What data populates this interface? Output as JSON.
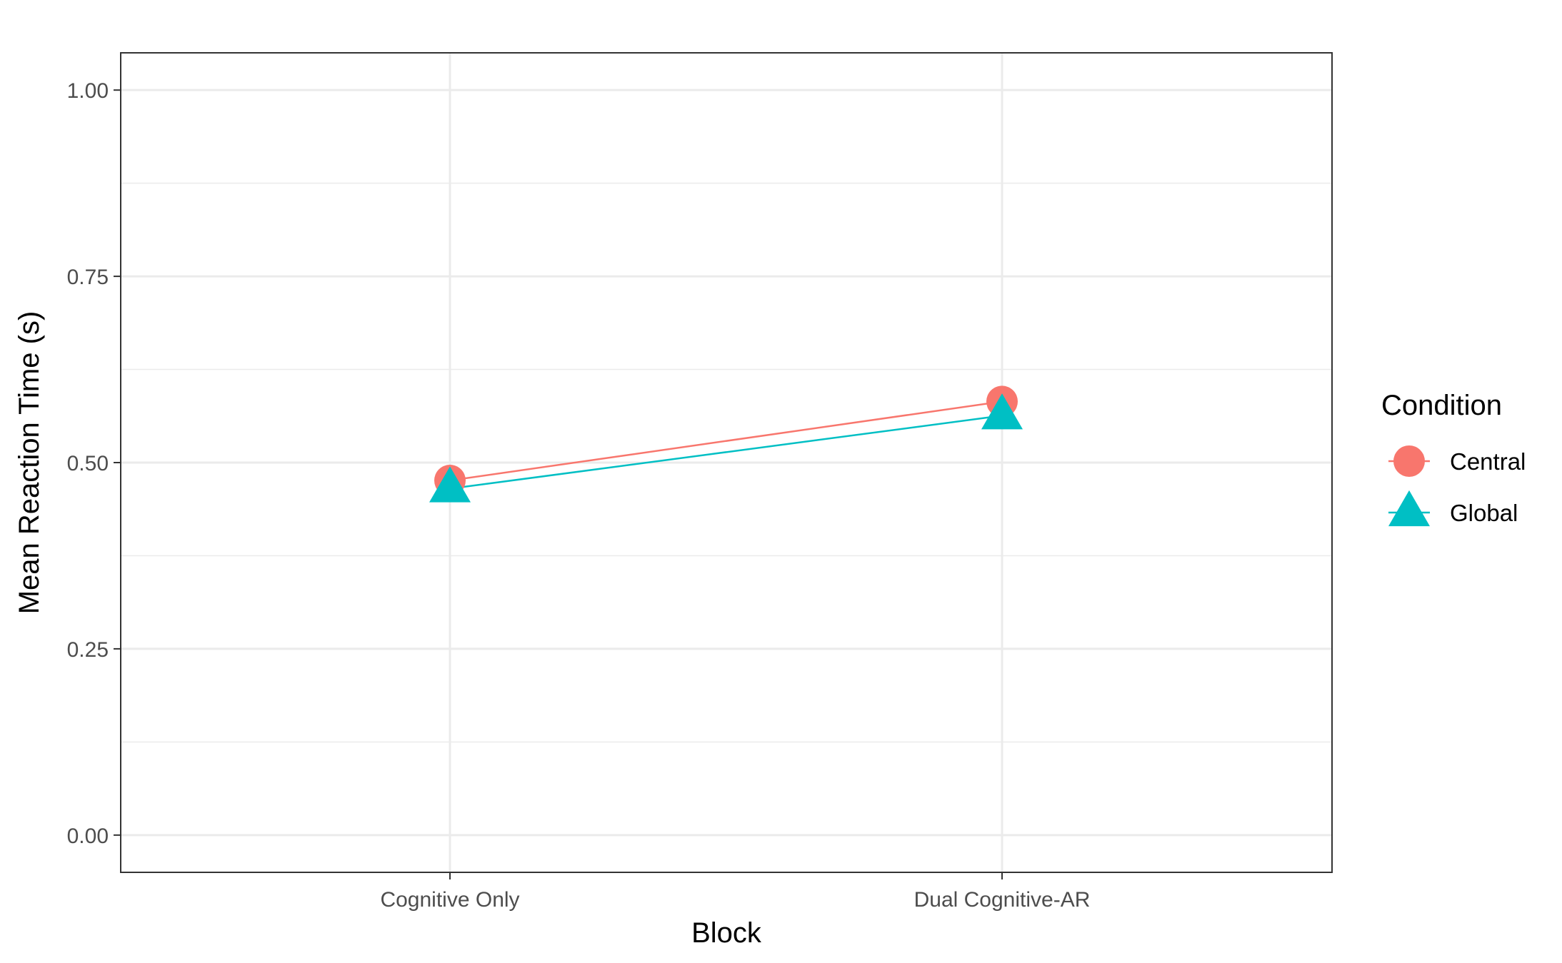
{
  "chart_data": {
    "type": "line",
    "title": "",
    "xlabel": "Block",
    "ylabel": "Mean Reaction Time (s)",
    "categories": [
      "Cognitive Only",
      "Dual Cognitive-AR"
    ],
    "ylim": [
      -0.05,
      1.05
    ],
    "yticks": [
      0.0,
      0.25,
      0.5,
      0.75,
      1.0
    ],
    "ytick_labels": [
      "0.00",
      "0.25",
      "0.50",
      "0.75",
      "1.00"
    ],
    "grid": true,
    "legend": {
      "title": "Condition",
      "position": "right"
    },
    "series": [
      {
        "name": "Central",
        "values": [
          0.476,
          0.582
        ],
        "color": "#F8766D",
        "marker": "circle"
      },
      {
        "name": "Global",
        "values": [
          0.465,
          0.563
        ],
        "color": "#00BFC4",
        "marker": "triangle"
      }
    ]
  }
}
